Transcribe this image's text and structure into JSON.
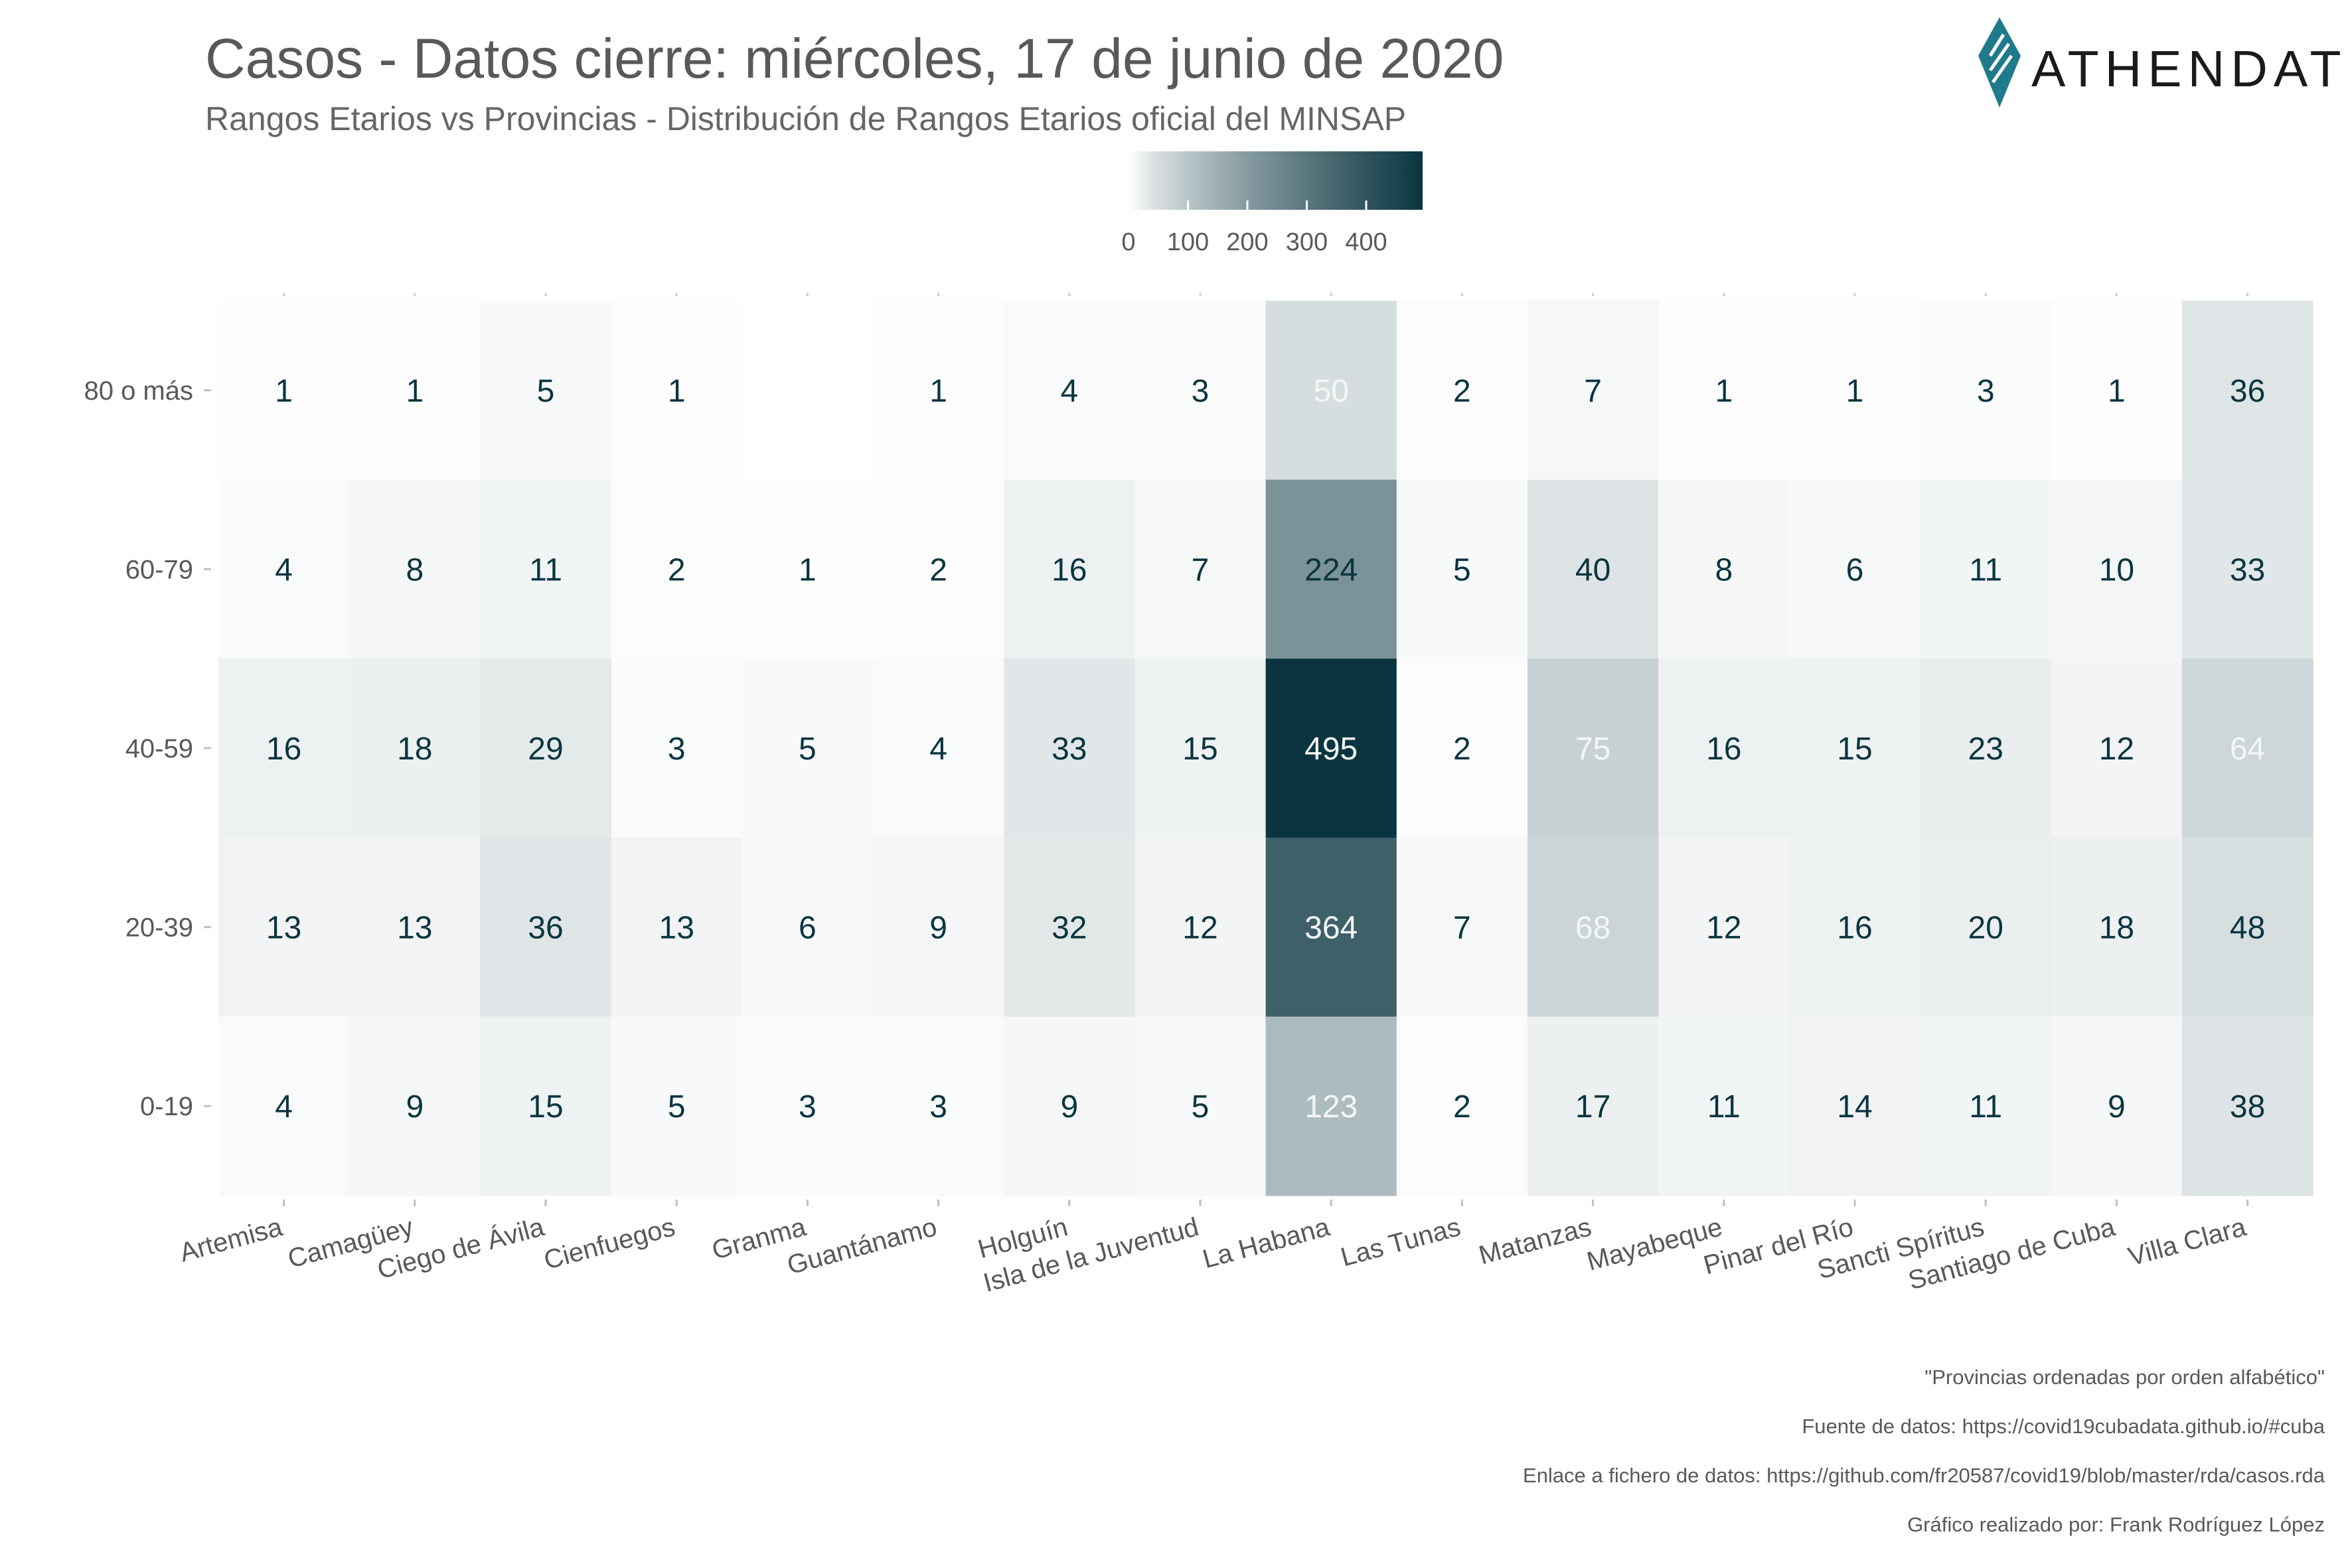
{
  "header": {
    "title": "Casos - Datos cierre: miércoles, 17 de junio de 2020",
    "subtitle": "Rangos Etarios vs Provincias - Distribución de Rangos Etarios oficial del MINSAP"
  },
  "logo": {
    "text": "ATHENDAT",
    "color": "#1f7a8c"
  },
  "legend": {
    "ticks": [
      0,
      100,
      200,
      300,
      400
    ],
    "max": 495,
    "low_color": "#ffffff",
    "high_color": "#0a3540",
    "placement": "top-center"
  },
  "captions": [
    "\"Provincias ordenadas por orden alfabético\"",
    "Fuente de datos: https://covid19cubadata.github.io/#cuba",
    "Enlace a fichero de datos: https://github.com/fr20587/covid19/blob/master/rda/casos.rda",
    "Gráfico realizado por: Frank Rodríguez López"
  ],
  "chart_data": {
    "type": "heatmap",
    "title": "Casos - Datos cierre: miércoles, 17 de junio de 2020",
    "subtitle": "Rangos Etarios vs Provincias - Distribución de Rangos Etarios oficial del MINSAP",
    "x": [
      "Artemisa",
      "Camagüey",
      "Ciego de Ávila",
      "Cienfuegos",
      "Granma",
      "Guantánamo",
      "Holguín",
      "Isla de la Juventud",
      "La Habana",
      "Las Tunas",
      "Matanzas",
      "Mayabeque",
      "Pinar del Río",
      "Sancti Spíritus",
      "Santiago de Cuba",
      "Villa Clara"
    ],
    "y": [
      "80 o más",
      "60-79",
      "40-59",
      "20-39",
      "0-19"
    ],
    "values": [
      [
        1,
        1,
        5,
        1,
        null,
        1,
        4,
        3,
        50,
        2,
        7,
        1,
        1,
        3,
        1,
        36
      ],
      [
        4,
        8,
        11,
        2,
        1,
        2,
        16,
        7,
        224,
        5,
        40,
        8,
        6,
        11,
        10,
        33
      ],
      [
        16,
        18,
        29,
        3,
        5,
        4,
        33,
        15,
        495,
        2,
        75,
        16,
        15,
        23,
        12,
        64
      ],
      [
        13,
        13,
        36,
        13,
        6,
        9,
        32,
        12,
        364,
        7,
        68,
        12,
        16,
        20,
        18,
        48
      ],
      [
        4,
        9,
        15,
        5,
        3,
        3,
        9,
        5,
        123,
        2,
        17,
        11,
        14,
        11,
        9,
        38
      ]
    ],
    "light_label_cells": [
      [
        0,
        8
      ],
      [
        2,
        8
      ],
      [
        2,
        10
      ],
      [
        2,
        15
      ],
      [
        3,
        8
      ],
      [
        3,
        10
      ],
      [
        4,
        8
      ]
    ],
    "label_dark_color": "#0a3540",
    "label_light_color": "#f4f6f6",
    "scale": {
      "min": 0,
      "max": 495,
      "low": "#ffffff",
      "high": "#0a3540"
    }
  }
}
